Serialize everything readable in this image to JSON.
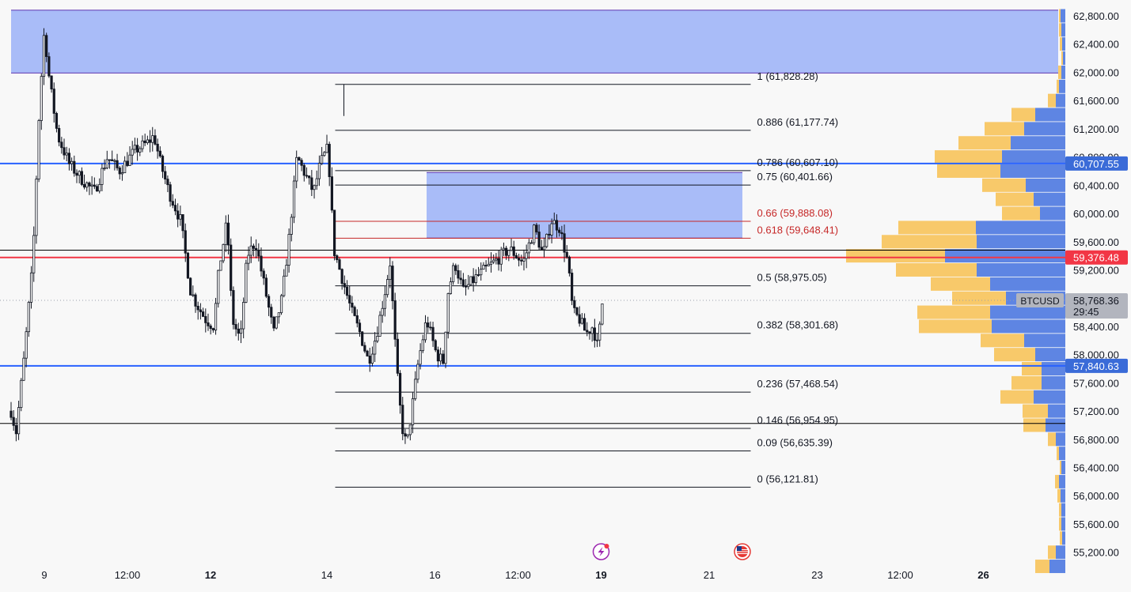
{
  "chart_data": {
    "type": "candlestick",
    "symbol": "BTCUSD",
    "y_ticks": [
      "62,800.00",
      "62,400.00",
      "62,000.00",
      "61,600.00",
      "61,200.00",
      "60,800.00",
      "60,400.00",
      "60,000.00",
      "59,600.00",
      "59,200.00",
      "58,400.00",
      "58,000.00",
      "57,600.00",
      "57,200.00",
      "56,800.00",
      "56,400.00",
      "56,000.00",
      "55,600.00",
      "55,200.00"
    ],
    "x_ticks": [
      {
        "label": "9",
        "bold": false,
        "t": 0.0
      },
      {
        "label": "12:00",
        "bold": false,
        "t": 0.5
      },
      {
        "label": "12",
        "bold": true,
        "t": 1.0
      },
      {
        "label": "14",
        "bold": false,
        "t": 1.7
      },
      {
        "label": "16",
        "bold": false,
        "t": 2.35
      },
      {
        "label": "12:00",
        "bold": false,
        "t": 2.85
      },
      {
        "label": "19",
        "bold": true,
        "t": 3.35
      },
      {
        "label": "21",
        "bold": false,
        "t": 4.0
      },
      {
        "label": "23",
        "bold": false,
        "t": 4.65
      },
      {
        "label": "12:00",
        "bold": false,
        "t": 5.15
      },
      {
        "label": "26",
        "bold": true,
        "t": 5.65
      }
    ],
    "price_labels": [
      {
        "text": "60,707.55",
        "value": 60707.55,
        "color": "#3a6bd8",
        "lines": []
      },
      {
        "text": "59,376.48",
        "value": 59376.48,
        "color": "#f23645",
        "lines": []
      },
      {
        "text": "58,768.36",
        "value": 58768.36,
        "color": "#b2b5be",
        "lines": [
          "29:45"
        ],
        "ticker": "BTCUSD"
      },
      {
        "text": "57,840.63",
        "value": 57840.63,
        "color": "#3a6bd8",
        "lines": []
      }
    ],
    "horizontal_lines": [
      {
        "value": 60707.55,
        "color": "#2962ff"
      },
      {
        "value": 59376.48,
        "color": "#f23645"
      },
      {
        "value": 57840.63,
        "color": "#2962ff"
      },
      {
        "value": 59480,
        "color": "#000000"
      },
      {
        "value": 57025,
        "color": "#000000"
      }
    ],
    "zones": [
      {
        "from_value": 61990,
        "to_value": 62880,
        "t_start": -0.2,
        "t_end": 6.1,
        "color": "#a4b8f8"
      },
      {
        "from_value": 59650,
        "to_value": 60580,
        "t_start": 2.3,
        "t_end": 4.2,
        "color": "#a4b8f8"
      }
    ],
    "fibonacci": {
      "t_start": 1.75,
      "t_end": 4.25,
      "levels": [
        {
          "label": "1 (61,828.28)",
          "value": 61828.28,
          "color": "#131722"
        },
        {
          "label": "0.886 (61,177.74)",
          "value": 61177.74,
          "color": "#131722"
        },
        {
          "label": "0.786 (60,607.10)",
          "value": 60607.1,
          "color": "#131722"
        },
        {
          "label": "0.75 (60,401.66)",
          "value": 60401.66,
          "color": "#131722"
        },
        {
          "label": "0.66 (59,888.08)",
          "value": 59888.08,
          "color": "#c62828"
        },
        {
          "label": "0.618 (59,648.41)",
          "value": 59648.41,
          "color": "#c62828"
        },
        {
          "label": "0.5 (58,975.05)",
          "value": 58975.05,
          "color": "#131722"
        },
        {
          "label": "0.382 (58,301.68)",
          "value": 58301.68,
          "color": "#131722"
        },
        {
          "label": "0.236 (57,468.54)",
          "value": 57468.54,
          "color": "#131722"
        },
        {
          "label": "0.146 (56,954.95)",
          "value": 56954.95,
          "color": "#131722"
        },
        {
          "label": "0.09 (56,635.39)",
          "value": 56635.39,
          "color": "#131722"
        },
        {
          "label": "0 (56,121.81)",
          "value": 56121.81,
          "color": "#131722"
        }
      ]
    },
    "price_path": [
      [
        -0.2,
        57200
      ],
      [
        -0.17,
        56900
      ],
      [
        -0.12,
        58000
      ],
      [
        -0.07,
        59300
      ],
      [
        -0.03,
        61500
      ],
      [
        0.0,
        62600
      ],
      [
        0.03,
        61900
      ],
      [
        0.08,
        61100
      ],
      [
        0.15,
        60700
      ],
      [
        0.22,
        60500
      ],
      [
        0.3,
        60300
      ],
      [
        0.38,
        60800
      ],
      [
        0.45,
        60600
      ],
      [
        0.55,
        60900
      ],
      [
        0.62,
        61000
      ],
      [
        0.66,
        61100
      ],
      [
        0.7,
        60700
      ],
      [
        0.75,
        60300
      ],
      [
        0.82,
        59900
      ],
      [
        0.88,
        58900
      ],
      [
        0.92,
        58700
      ],
      [
        0.97,
        58500
      ],
      [
        1.02,
        58400
      ],
      [
        1.05,
        59200
      ],
      [
        1.1,
        59900
      ],
      [
        1.13,
        58500
      ],
      [
        1.18,
        58200
      ],
      [
        1.22,
        59400
      ],
      [
        1.27,
        59600
      ],
      [
        1.33,
        58900
      ],
      [
        1.38,
        58300
      ],
      [
        1.43,
        58800
      ],
      [
        1.47,
        59600
      ],
      [
        1.52,
        60800
      ],
      [
        1.56,
        60600
      ],
      [
        1.62,
        60300
      ],
      [
        1.66,
        60700
      ],
      [
        1.7,
        60900
      ],
      [
        1.72,
        60500
      ],
      [
        1.74,
        59500
      ],
      [
        1.79,
        59100
      ],
      [
        1.85,
        58600
      ],
      [
        1.9,
        58300
      ],
      [
        1.95,
        57900
      ],
      [
        2.0,
        58300
      ],
      [
        2.05,
        58900
      ],
      [
        2.08,
        59300
      ],
      [
        2.12,
        57800
      ],
      [
        2.15,
        57000
      ],
      [
        2.18,
        56700
      ],
      [
        2.21,
        57200
      ],
      [
        2.25,
        57900
      ],
      [
        2.3,
        58500
      ],
      [
        2.36,
        58000
      ],
      [
        2.4,
        57900
      ],
      [
        2.43,
        58900
      ],
      [
        2.47,
        59300
      ],
      [
        2.52,
        58900
      ],
      [
        2.6,
        59100
      ],
      [
        2.7,
        59300
      ],
      [
        2.8,
        59500
      ],
      [
        2.88,
        59300
      ],
      [
        2.95,
        59800
      ],
      [
        3.0,
        59400
      ],
      [
        3.05,
        59900
      ],
      [
        3.1,
        59800
      ],
      [
        3.15,
        59300
      ],
      [
        3.18,
        58600
      ],
      [
        3.22,
        58500
      ],
      [
        3.26,
        58300
      ],
      [
        3.3,
        58400
      ],
      [
        3.33,
        58100
      ],
      [
        3.36,
        58800
      ]
    ],
    "volume_profile": [
      {
        "value": 62800,
        "yellow": 2,
        "blue": 6
      },
      {
        "value": 62600,
        "yellow": 3,
        "blue": 5
      },
      {
        "value": 62400,
        "yellow": 3,
        "blue": 4
      },
      {
        "value": 62200,
        "yellow": 2,
        "blue": 3
      },
      {
        "value": 62000,
        "yellow": 4,
        "blue": 5
      },
      {
        "value": 61800,
        "yellow": 3,
        "blue": 8
      },
      {
        "value": 61600,
        "yellow": 10,
        "blue": 12
      },
      {
        "value": 61400,
        "yellow": 30,
        "blue": 38
      },
      {
        "value": 61200,
        "yellow": 50,
        "blue": 52
      },
      {
        "value": 61000,
        "yellow": 66,
        "blue": 69
      },
      {
        "value": 60800,
        "yellow": 85,
        "blue": 80
      },
      {
        "value": 60600,
        "yellow": 80,
        "blue": 82
      },
      {
        "value": 60400,
        "yellow": 55,
        "blue": 50
      },
      {
        "value": 60200,
        "yellow": 48,
        "blue": 40
      },
      {
        "value": 60000,
        "yellow": 48,
        "blue": 32
      },
      {
        "value": 59800,
        "yellow": 98,
        "blue": 113
      },
      {
        "value": 59600,
        "yellow": 120,
        "blue": 112
      },
      {
        "value": 59400,
        "yellow": 125,
        "blue": 152
      },
      {
        "value": 59200,
        "yellow": 102,
        "blue": 112
      },
      {
        "value": 59000,
        "yellow": 75,
        "blue": 95
      },
      {
        "value": 58800,
        "yellow": 68,
        "blue": 75
      },
      {
        "value": 58600,
        "yellow": 92,
        "blue": 95
      },
      {
        "value": 58400,
        "yellow": 92,
        "blue": 93
      },
      {
        "value": 58200,
        "yellow": 55,
        "blue": 52
      },
      {
        "value": 58000,
        "yellow": 52,
        "blue": 38
      },
      {
        "value": 57800,
        "yellow": 25,
        "blue": 30
      },
      {
        "value": 57600,
        "yellow": 38,
        "blue": 30
      },
      {
        "value": 57400,
        "yellow": 42,
        "blue": 40
      },
      {
        "value": 57200,
        "yellow": 32,
        "blue": 22
      },
      {
        "value": 57000,
        "yellow": 28,
        "blue": 25
      },
      {
        "value": 56800,
        "yellow": 10,
        "blue": 12
      },
      {
        "value": 56600,
        "yellow": 3,
        "blue": 8
      },
      {
        "value": 56400,
        "yellow": 2,
        "blue": 5
      },
      {
        "value": 56200,
        "yellow": 5,
        "blue": 8
      },
      {
        "value": 56000,
        "yellow": 4,
        "blue": 6
      },
      {
        "value": 55800,
        "yellow": 3,
        "blue": 5
      },
      {
        "value": 55600,
        "yellow": 3,
        "blue": 5
      },
      {
        "value": 55400,
        "yellow": 3,
        "blue": 4
      },
      {
        "value": 55200,
        "yellow": 10,
        "blue": 12
      },
      {
        "value": 55000,
        "yellow": 18,
        "blue": 20
      }
    ],
    "events": [
      {
        "t": 3.35,
        "icon": "lightning-icon",
        "color": "#9c27b0"
      },
      {
        "t": 4.2,
        "icon": "us-flag-icon",
        "color": "#e53935"
      }
    ]
  }
}
